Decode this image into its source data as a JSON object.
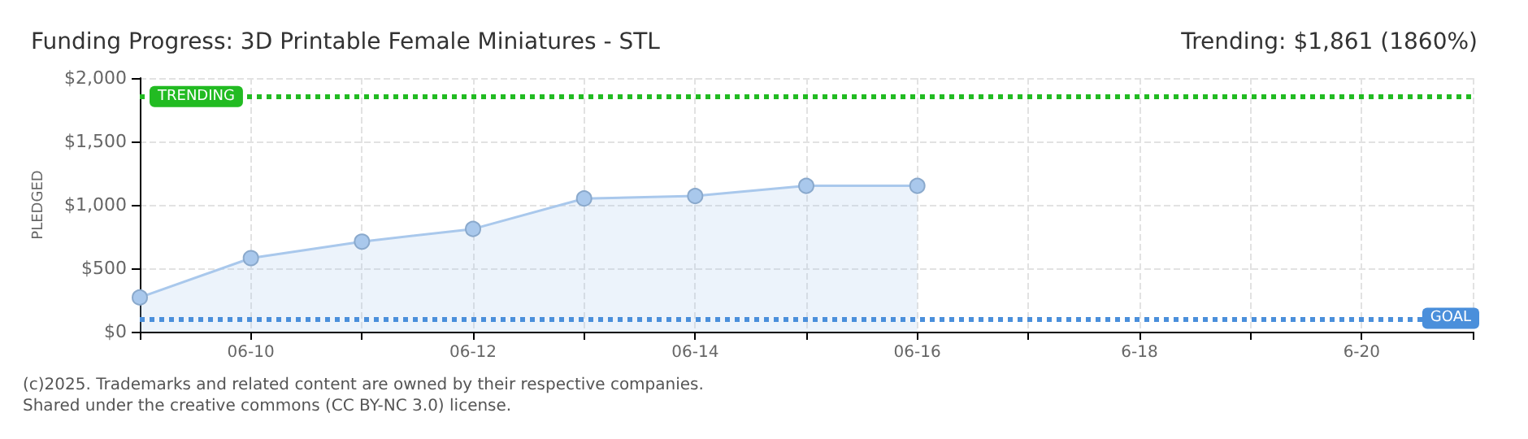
{
  "chart_data": {
    "type": "area",
    "title": "Funding Progress: 3D Printable Female Miniatures - STL",
    "subtitle": "Trending: $1,861 (1860%)",
    "ylabel": "PLEDGED",
    "categories": [
      null,
      "06-10",
      null,
      "06-12",
      null,
      "06-14",
      null,
      "06-16",
      null,
      "6-18",
      null,
      "6-20",
      null
    ],
    "series": [
      {
        "color": "#a9c8ec",
        "values": [
          270,
          580,
          710,
          810,
          1050,
          1070,
          1150,
          1150,
          null,
          null,
          null,
          null,
          null
        ]
      }
    ],
    "ylim": [
      0,
      2000
    ],
    "yticks": [
      {
        "value": 0,
        "label": "$0"
      },
      {
        "value": 500,
        "label": "$500"
      },
      {
        "value": 1000,
        "label": "$1,000"
      },
      {
        "value": 1500,
        "label": "$1,500"
      },
      {
        "value": 2000,
        "label": "$2,000"
      }
    ],
    "ref_lines": [
      {
        "axis": "y",
        "value": 1861,
        "label": "TRENDING",
        "color": "#22bb22",
        "line_style": "dotted"
      },
      {
        "axis": "y",
        "value": 100,
        "label": "GOAL",
        "color": "#4a8fdb",
        "line_style": "dotted"
      }
    ],
    "grid": true,
    "marker": "circle",
    "line_style": "solid",
    "annotations": [
      "(c)2025. Trademarks and related content are owned by their respective companies.",
      "Shared under the creative commons (CC BY-NC 3.0) license."
    ]
  }
}
